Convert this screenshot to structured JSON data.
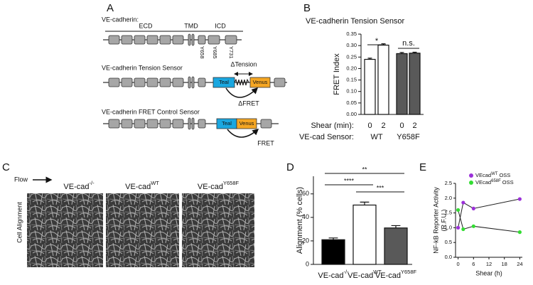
{
  "panels": {
    "a": "A",
    "b": "B",
    "c": "C",
    "d": "D",
    "e": "E"
  },
  "diagram": {
    "title": "VE-cadherin:",
    "domains": [
      "ECD",
      "TMD",
      "ICD"
    ],
    "residues": [
      "Y658",
      "Y685",
      "Y731"
    ],
    "tension_sensor": {
      "title": "VE-cadherin Tension Sensor",
      "tension": "ΔTension",
      "donor": "Teal",
      "acceptor": "Venus",
      "fret": "ΔFRET"
    },
    "control_sensor": {
      "title": "VE-cadherin FRET Control Sensor",
      "donor": "Teal",
      "acceptor": "Venus",
      "fret": "FRET"
    }
  },
  "images": {
    "flow": "Flow",
    "row_label": "Cell Alignment",
    "columns": [
      {
        "name": "VE-cad",
        "sup": "-/-"
      },
      {
        "name": "VE-cad",
        "sup": "WT"
      },
      {
        "name": "VE-cad",
        "sup": "Y658F"
      }
    ]
  },
  "chart_data": [
    {
      "type": "bar",
      "title": "VE-cadherin Tension Sensor",
      "y_label": "FRET Index",
      "category_row_label": "Shear (min):",
      "categories": [
        "0",
        "2",
        "0",
        "2"
      ],
      "group_row_label": "VE-cad Sensor:",
      "groups": [
        "WT",
        "Y658F"
      ],
      "values": [
        0.24,
        0.302,
        0.265,
        0.267
      ],
      "errors": [
        0.005,
        0.006,
        0.005,
        0.004
      ],
      "colors": [
        "#ffffff",
        "#ffffff",
        "#595959",
        "#595959"
      ],
      "ylim": [
        0,
        0.35
      ],
      "yticks": [
        {
          "value": 0,
          "label": "0.00"
        },
        {
          "value": 0.05,
          "label": "0.05"
        },
        {
          "value": 0.1,
          "label": "0.10"
        },
        {
          "value": 0.15,
          "label": "0.15"
        },
        {
          "value": 0.2,
          "label": "0.20"
        },
        {
          "value": 0.25,
          "label": "0.25"
        },
        {
          "value": 0.3,
          "label": "0.30"
        },
        {
          "value": 0.35,
          "label": "0.35"
        }
      ],
      "significance": [
        "*",
        "n.s."
      ]
    },
    {
      "type": "bar",
      "y_label": "Alignment (% cells)",
      "categories": [
        "VE-cad",
        "VE-cad",
        "VE-cad"
      ],
      "category_superscripts": [
        "-/-",
        "WT",
        "Y658F"
      ],
      "values": [
        21,
        50.5,
        31
      ],
      "errors": [
        1.5,
        2.5,
        2
      ],
      "colors": [
        "#000000",
        "#ffffff",
        "#595959"
      ],
      "ylim": [
        0,
        75
      ],
      "yticks": [
        0,
        20,
        40,
        60
      ],
      "significance": [
        "**",
        "****",
        "***"
      ]
    },
    {
      "type": "line",
      "y_label": [
        "NF-kB Reporter Activity",
        "(R.F.U.)"
      ],
      "x_label": "Shear (h)",
      "x": [
        0,
        2,
        6,
        24
      ],
      "series": [
        {
          "name": "VEcad",
          "name_superscript": "WT",
          "name_suffix": "OSS",
          "color": "#9b30d9",
          "values": [
            1.0,
            1.85,
            1.65,
            1.97
          ]
        },
        {
          "name": "VEcad",
          "name_superscript": "658F",
          "name_suffix": "OSS",
          "color": "#33dd33",
          "values": [
            1.6,
            0.95,
            1.05,
            0.85
          ]
        }
      ],
      "xlim": [
        -1,
        25
      ],
      "xticks": [
        0,
        6,
        12,
        18,
        24
      ],
      "ylim": [
        0,
        2.5
      ],
      "yticks": [
        {
          "value": 0,
          "label": "0.0"
        },
        0.5,
        {
          "value": 1,
          "label": "1.0"
        },
        1.5,
        {
          "value": 2,
          "label": "2.0"
        },
        2.5
      ]
    }
  ]
}
